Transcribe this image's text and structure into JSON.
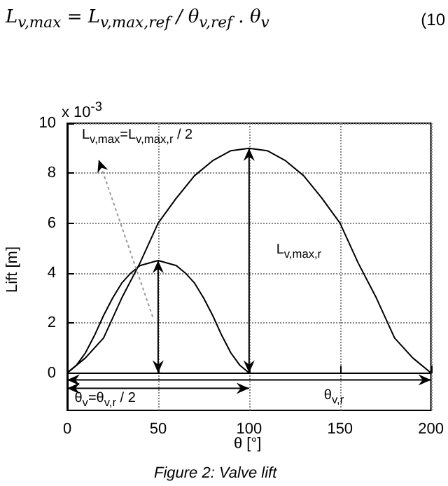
{
  "chart_data": {
    "type": "line",
    "xlabel": "θ [°]",
    "ylabel": "Lift [m]",
    "annotations": [
      "L$_{v,max}$ = L$_{v,max,ref}$ / θ$_{v,ref}$ . θ$_{v}$",
      "(10",
      "x 10$^{-3}$",
      "Figure 2: Valve lift",
      "L$_{v,max}$=L$_{v,max,r}$ / 2",
      "L$_{v,max,r}$",
      "θ$_{v}$=θ$_{v,r}$ / 2",
      "θ$_{v,r}$"
    ],
    "series": [
      {
        "color": "#000000",
        "x": [
          0,
          10,
          20,
          25,
          30,
          40,
          50,
          60,
          70,
          80,
          90,
          100,
          110,
          120,
          130,
          140,
          150,
          160,
          170,
          175,
          180,
          190,
          200
        ],
        "values": [
          0,
          0.6,
          1.4,
          2.2,
          3.0,
          4.4,
          6.0,
          7.0,
          7.9,
          8.5,
          8.9,
          9.0,
          8.9,
          8.5,
          7.9,
          7.0,
          6.0,
          4.4,
          3.0,
          2.2,
          1.4,
          0.6,
          0
        ]
      },
      {
        "color": "#000000",
        "x": [
          0,
          5,
          10,
          15,
          20,
          25,
          30,
          35,
          40,
          50,
          60,
          65,
          70,
          75,
          80,
          85,
          90,
          95,
          100
        ],
        "values": [
          0,
          0.3,
          0.8,
          1.5,
          2.3,
          3.0,
          3.6,
          4.0,
          4.3,
          4.5,
          4.3,
          4.0,
          3.6,
          3.0,
          2.3,
          1.5,
          0.8,
          0.3,
          0
        ]
      }
    ],
    "xlim": [
      0,
      200
    ],
    "xticks": [
      0,
      50,
      100,
      150,
      200
    ],
    "ylim": [
      -1.5,
      10
    ],
    "yticks": [
      0,
      2,
      4,
      6,
      8,
      10
    ],
    "grid": true,
    "marker": "none",
    "line_style": "solid"
  }
}
